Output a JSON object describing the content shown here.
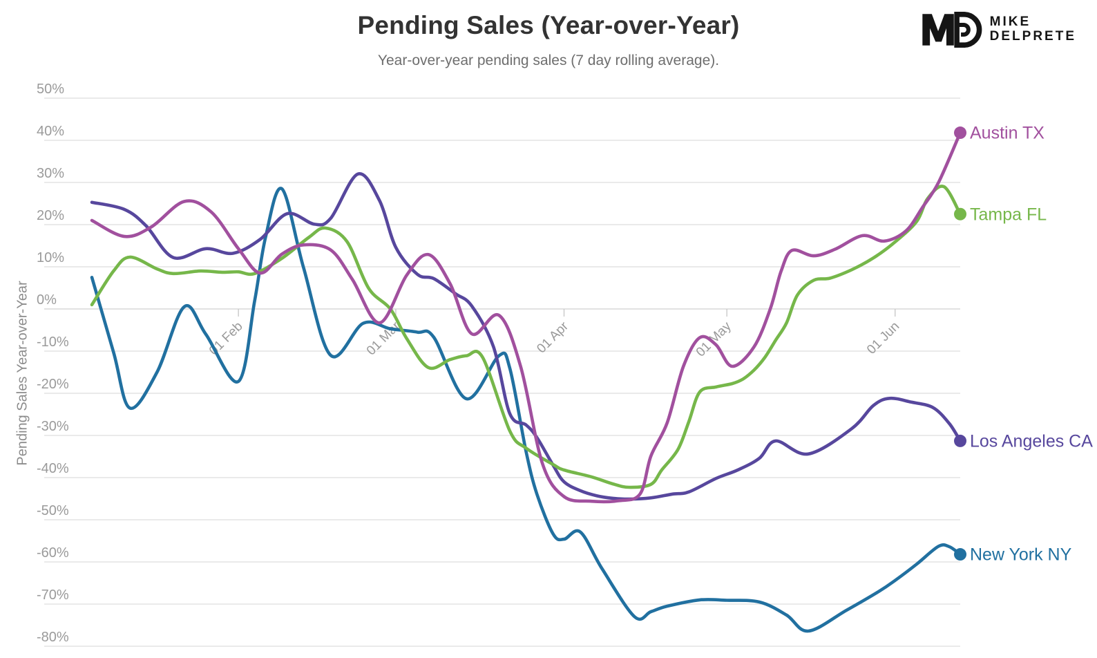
{
  "header": {
    "title": "Pending Sales (Year-over-Year)",
    "subtitle": "Year-over-year pending sales (7 day rolling average).",
    "logo": {
      "monogram": "MD",
      "name_line1": "MIKE",
      "name_line2": "DELPRETE"
    }
  },
  "chart_data": {
    "type": "line",
    "title": "Pending Sales (Year-over-Year)",
    "subtitle": "Year-over-year pending sales (7 day rolling average).",
    "ylabel": "Pending Sales Year-over-Year",
    "grid": true,
    "legend_position": "end-of-line-labels",
    "ylim": [
      -80,
      50
    ],
    "y_ticks": [
      {
        "v": 50,
        "label": "50%"
      },
      {
        "v": 40,
        "label": "40%"
      },
      {
        "v": 30,
        "label": "30%"
      },
      {
        "v": 20,
        "label": "20%"
      },
      {
        "v": 10,
        "label": "10%"
      },
      {
        "v": 0,
        "label": "0%"
      },
      {
        "v": -10,
        "label": "-10%"
      },
      {
        "v": -20,
        "label": "-20%"
      },
      {
        "v": -30,
        "label": "-30%"
      },
      {
        "v": -40,
        "label": "-40%"
      },
      {
        "v": -50,
        "label": "-50%"
      },
      {
        "v": -60,
        "label": "-60%"
      },
      {
        "v": -70,
        "label": "-70%"
      },
      {
        "v": -80,
        "label": "-80%"
      }
    ],
    "xlim": [
      0,
      160
    ],
    "x_unit": "day index (0 = chart start, early January)",
    "x_ticks": [
      {
        "d": 27,
        "label": "01 Feb"
      },
      {
        "d": 56,
        "label": "01 Mar"
      },
      {
        "d": 87,
        "label": "01 Apr"
      },
      {
        "d": 117,
        "label": "01 May"
      },
      {
        "d": 148,
        "label": "01 Jun"
      }
    ],
    "series": [
      {
        "name": "Austin TX",
        "color": "#a1509e",
        "end_value_pct": 42,
        "points": [
          [
            0,
            21
          ],
          [
            6,
            17.2
          ],
          [
            11,
            19.5
          ],
          [
            17,
            25.5
          ],
          [
            22,
            23
          ],
          [
            27,
            14.3
          ],
          [
            31,
            8.5
          ],
          [
            35,
            13
          ],
          [
            39,
            15.2
          ],
          [
            44,
            14
          ],
          [
            48,
            7
          ],
          [
            53,
            -3.3
          ],
          [
            58,
            8
          ],
          [
            62,
            12.9
          ],
          [
            66,
            6
          ],
          [
            70,
            -5.9
          ],
          [
            75,
            -1.5
          ],
          [
            79,
            -13.6
          ],
          [
            83,
            -36.6
          ],
          [
            87,
            -44.5
          ],
          [
            92,
            -45.6
          ],
          [
            97,
            -45.5
          ],
          [
            101,
            -43.9
          ],
          [
            103,
            -34.9
          ],
          [
            106,
            -27
          ],
          [
            109,
            -13.6
          ],
          [
            112,
            -6.8
          ],
          [
            115,
            -8.5
          ],
          [
            118,
            -13.6
          ],
          [
            122,
            -9
          ],
          [
            125,
            0
          ],
          [
            127,
            9
          ],
          [
            129,
            13.9
          ],
          [
            133,
            12.6
          ],
          [
            137,
            14.2
          ],
          [
            142,
            17.4
          ],
          [
            146,
            16.1
          ],
          [
            150,
            18.5
          ],
          [
            153,
            24
          ],
          [
            156,
            30
          ],
          [
            160,
            41.8
          ]
        ]
      },
      {
        "name": "Tampa FL",
        "color": "#76b74a",
        "end_value_pct": 22,
        "points": [
          [
            0,
            1
          ],
          [
            4,
            9
          ],
          [
            7,
            12.3
          ],
          [
            12,
            9.5
          ],
          [
            15,
            8.4
          ],
          [
            20,
            9
          ],
          [
            24,
            8.7
          ],
          [
            27,
            8.8
          ],
          [
            30,
            8.4
          ],
          [
            35,
            12
          ],
          [
            40,
            17
          ],
          [
            43,
            19.2
          ],
          [
            47,
            16
          ],
          [
            51,
            4.9
          ],
          [
            55,
            0
          ],
          [
            58,
            -7
          ],
          [
            62,
            -13.9
          ],
          [
            66,
            -12
          ],
          [
            69,
            -11.1
          ],
          [
            72,
            -11.5
          ],
          [
            77,
            -28.9
          ],
          [
            80,
            -33
          ],
          [
            85,
            -36.9
          ],
          [
            87,
            -38.2
          ],
          [
            92,
            -39.8
          ],
          [
            96,
            -41.5
          ],
          [
            99,
            -42.3
          ],
          [
            103,
            -41.6
          ],
          [
            105,
            -38.2
          ],
          [
            108,
            -33.3
          ],
          [
            110,
            -26.7
          ],
          [
            112,
            -19.7
          ],
          [
            115,
            -18.5
          ],
          [
            118,
            -17.7
          ],
          [
            120,
            -16.6
          ],
          [
            122,
            -14.5
          ],
          [
            124,
            -11.5
          ],
          [
            126,
            -7.4
          ],
          [
            128,
            -3.3
          ],
          [
            130,
            3.3
          ],
          [
            133,
            6.8
          ],
          [
            136,
            7.3
          ],
          [
            140,
            9.3
          ],
          [
            144,
            12.1
          ],
          [
            148,
            15.9
          ],
          [
            152,
            20.8
          ],
          [
            154,
            26.2
          ],
          [
            157,
            29
          ],
          [
            160,
            22.5
          ]
        ]
      },
      {
        "name": "Los Angeles CA",
        "color": "#57479d",
        "end_value_pct": -31,
        "points": [
          [
            0,
            25.3
          ],
          [
            6,
            23.6
          ],
          [
            10,
            19.7
          ],
          [
            15,
            12.2
          ],
          [
            21,
            14.3
          ],
          [
            26,
            13.2
          ],
          [
            31,
            16.5
          ],
          [
            36,
            22.6
          ],
          [
            41,
            20.1
          ],
          [
            44,
            21.5
          ],
          [
            49,
            32
          ],
          [
            53,
            25.7
          ],
          [
            56,
            14.6
          ],
          [
            60,
            8.2
          ],
          [
            63,
            7.2
          ],
          [
            67,
            3.6
          ],
          [
            70,
            0.7
          ],
          [
            74,
            -9
          ],
          [
            77,
            -24.8
          ],
          [
            80,
            -27.5
          ],
          [
            82,
            -30.5
          ],
          [
            85,
            -37.1
          ],
          [
            87,
            -41
          ],
          [
            90,
            -43.1
          ],
          [
            93,
            -44.3
          ],
          [
            96,
            -44.9
          ],
          [
            99,
            -45.1
          ],
          [
            103,
            -44.8
          ],
          [
            107,
            -43.9
          ],
          [
            110,
            -43.4
          ],
          [
            115,
            -40.2
          ],
          [
            119,
            -38.2
          ],
          [
            123,
            -35.4
          ],
          [
            126,
            -31.3
          ],
          [
            132,
            -34.4
          ],
          [
            140,
            -28.4
          ],
          [
            144,
            -22.9
          ],
          [
            147,
            -21.2
          ],
          [
            151,
            -22.1
          ],
          [
            155,
            -23.4
          ],
          [
            158,
            -27.2
          ],
          [
            160,
            -31.3
          ]
        ]
      },
      {
        "name": "New York NY",
        "color": "#2170a0",
        "end_value_pct": -58,
        "points": [
          [
            0,
            7.5
          ],
          [
            4,
            -10.3
          ],
          [
            7,
            -23.5
          ],
          [
            12,
            -15
          ],
          [
            17,
            0.5
          ],
          [
            21,
            -6
          ],
          [
            27,
            -17.2
          ],
          [
            30,
            2
          ],
          [
            32,
            17
          ],
          [
            35,
            28.5
          ],
          [
            39,
            9.8
          ],
          [
            44,
            -11
          ],
          [
            50,
            -3.4
          ],
          [
            55,
            -4.7
          ],
          [
            60,
            -5.5
          ],
          [
            63,
            -6.7
          ],
          [
            69,
            -21.3
          ],
          [
            75,
            -11.1
          ],
          [
            77,
            -14
          ],
          [
            80,
            -33.8
          ],
          [
            82,
            -43.9
          ],
          [
            85,
            -53.4
          ],
          [
            87,
            -54.6
          ],
          [
            90,
            -52.9
          ],
          [
            94,
            -61.6
          ],
          [
            100,
            -73
          ],
          [
            103,
            -71.8
          ],
          [
            106,
            -70.5
          ],
          [
            112,
            -69
          ],
          [
            117,
            -69.1
          ],
          [
            123,
            -69.5
          ],
          [
            128,
            -72.6
          ],
          [
            132,
            -76.4
          ],
          [
            139,
            -71.5
          ],
          [
            145,
            -67
          ],
          [
            148,
            -64.4
          ],
          [
            152,
            -60.5
          ],
          [
            156,
            -56.3
          ],
          [
            158,
            -56.4
          ],
          [
            160,
            -58.2
          ]
        ]
      }
    ]
  },
  "colors": {
    "title": "#333333",
    "subtitle": "#6e6e6e",
    "axis_text": "#9a9a9a",
    "gridline": "#e3e3e3",
    "zero_line": "#d8d8d8",
    "logo": "#151515"
  }
}
